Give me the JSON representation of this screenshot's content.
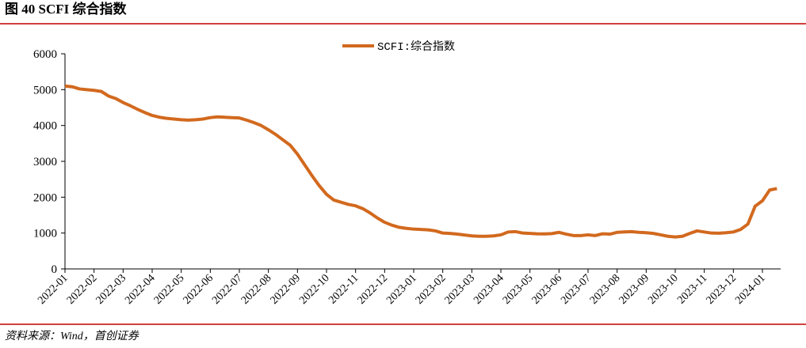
{
  "chart_data": {
    "type": "line",
    "title": "图 40 SCFI 综合指数",
    "source": "资料来源：Wind，首创证券",
    "categories": [
      "2022-01",
      null,
      null,
      null,
      "2022-02",
      null,
      null,
      null,
      "2022-03",
      null,
      null,
      null,
      "2022-04",
      null,
      null,
      null,
      "2022-05",
      null,
      null,
      null,
      "2022-06",
      null,
      null,
      null,
      "2022-07",
      null,
      null,
      null,
      "2022-08",
      null,
      null,
      null,
      "2022-09",
      null,
      null,
      null,
      "2022-10",
      null,
      null,
      null,
      "2022-11",
      null,
      null,
      null,
      "2022-12",
      null,
      null,
      null,
      "2023-01",
      null,
      null,
      null,
      "2023-02",
      null,
      null,
      null,
      "2023-03",
      null,
      null,
      null,
      "2023-04",
      null,
      null,
      null,
      "2023-05",
      null,
      null,
      null,
      "2023-06",
      null,
      null,
      null,
      "2023-07",
      null,
      null,
      null,
      "2023-08",
      null,
      null,
      null,
      "2023-09",
      null,
      null,
      null,
      "2023-10",
      null,
      null,
      null,
      "2023-11",
      null,
      null,
      null,
      "2023-12",
      null,
      null,
      null,
      "2024-01",
      null,
      null
    ],
    "series": [
      {
        "name": "SCFI:综合指数",
        "color": "#d2691e",
        "values": [
          5100,
          5080,
          5020,
          5000,
          4980,
          4950,
          4820,
          4750,
          4640,
          4550,
          4450,
          4360,
          4280,
          4230,
          4200,
          4180,
          4160,
          4150,
          4160,
          4180,
          4220,
          4240,
          4230,
          4220,
          4210,
          4150,
          4080,
          4000,
          3880,
          3750,
          3600,
          3450,
          3200,
          2900,
          2600,
          2320,
          2080,
          1920,
          1860,
          1800,
          1760,
          1680,
          1560,
          1420,
          1300,
          1220,
          1160,
          1130,
          1110,
          1100,
          1090,
          1060,
          1000,
          990,
          970,
          945,
          920,
          910,
          910,
          920,
          950,
          1030,
          1040,
          1000,
          990,
          980,
          975,
          985,
          1020,
          970,
          930,
          930,
          950,
          930,
          980,
          970,
          1020,
          1030,
          1040,
          1020,
          1010,
          990,
          950,
          910,
          890,
          910,
          990,
          1060,
          1030,
          1000,
          995,
          1010,
          1030,
          1100,
          1250,
          1750,
          1900,
          2200,
          2240
        ]
      }
    ],
    "ylim": [
      0,
      6000
    ],
    "yticks": [
      0,
      1000,
      2000,
      3000,
      4000,
      5000,
      6000
    ],
    "legend": "top"
  }
}
